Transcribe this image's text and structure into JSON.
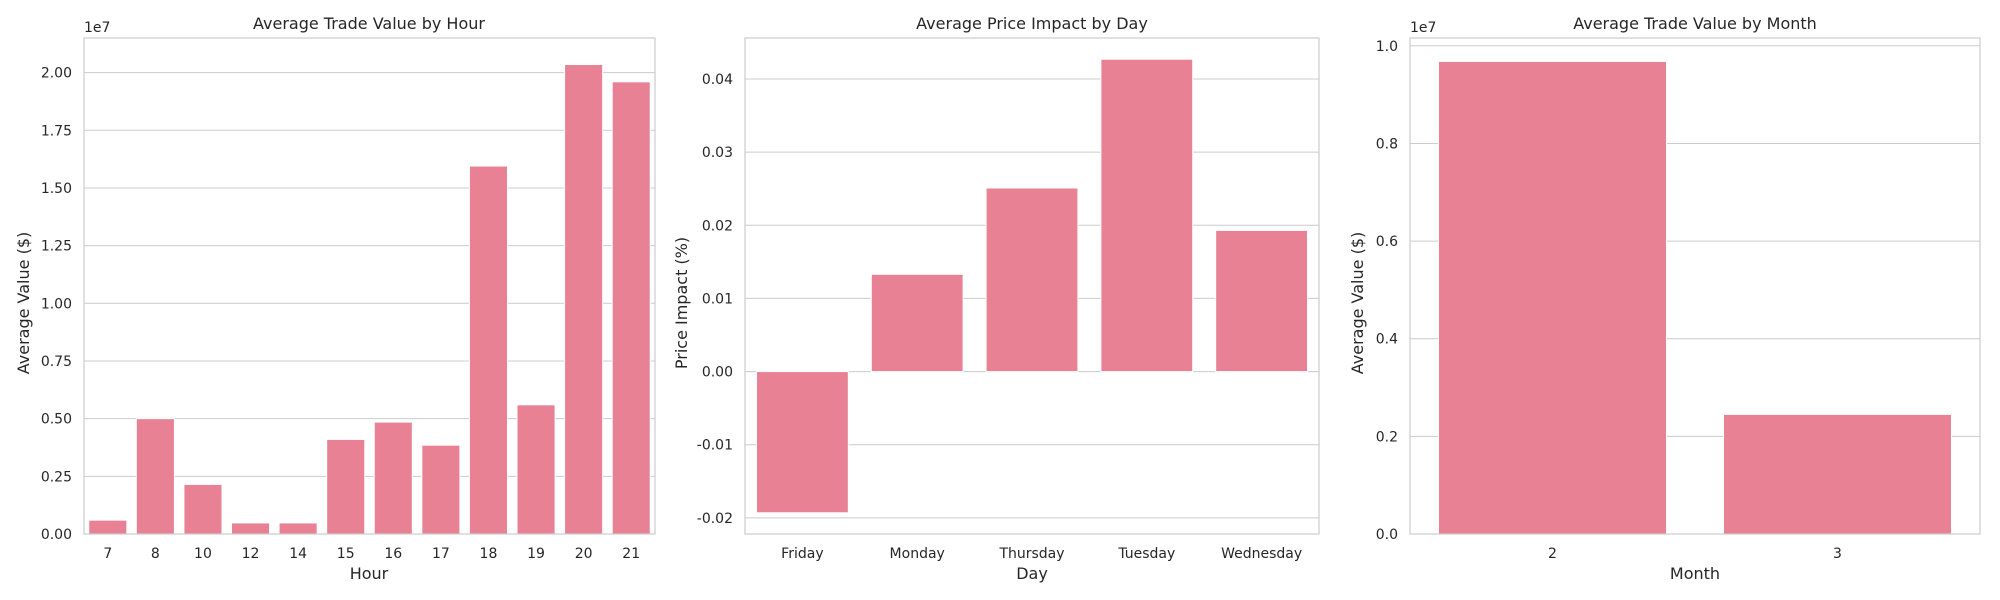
{
  "chart_data": [
    {
      "type": "bar",
      "title": "Average Trade Value by Hour",
      "xlabel": "Hour",
      "ylabel": "Average Value ($)",
      "offset_label": "1e7",
      "categories": [
        "7",
        "8",
        "10",
        "12",
        "14",
        "15",
        "16",
        "17",
        "18",
        "19",
        "20",
        "21"
      ],
      "values": [
        600000,
        5000000,
        2150000,
        480000,
        480000,
        4100000,
        4850000,
        3850000,
        15950000,
        5600000,
        20350000,
        19600000
      ],
      "ylim": [
        0,
        21500000
      ],
      "yticks": [
        0,
        2500000,
        5000000,
        7500000,
        10000000,
        12500000,
        15000000,
        17500000,
        20000000
      ],
      "ytick_labels": [
        "0.00",
        "0.25",
        "0.50",
        "0.75",
        "1.00",
        "1.25",
        "1.50",
        "1.75",
        "2.00"
      ],
      "grid": true,
      "color": "#e98195"
    },
    {
      "type": "bar",
      "title": "Average Price Impact by Day",
      "xlabel": "Day",
      "ylabel": "Price Impact (%)",
      "categories": [
        "Friday",
        "Monday",
        "Thursday",
        "Tuesday",
        "Wednesday"
      ],
      "values": [
        -0.0193,
        0.0133,
        0.0251,
        0.0427,
        0.0193
      ],
      "ylim": [
        -0.0222,
        0.0456
      ],
      "yticks": [
        -0.02,
        -0.01,
        0.0,
        0.01,
        0.02,
        0.03,
        0.04
      ],
      "ytick_labels": [
        "-0.02",
        "-0.01",
        "0.00",
        "0.01",
        "0.02",
        "0.03",
        "0.04"
      ],
      "grid": true,
      "color": "#e98195"
    },
    {
      "type": "bar",
      "title": "Average Trade Value by Month",
      "xlabel": "Month",
      "ylabel": "Average Value ($)",
      "offset_label": "1e7",
      "categories": [
        "2",
        "3"
      ],
      "values": [
        9680000,
        2450000
      ],
      "ylim": [
        0,
        10160000
      ],
      "yticks": [
        0,
        2000000,
        4000000,
        6000000,
        8000000,
        10000000
      ],
      "ytick_labels": [
        "0.0",
        "0.2",
        "0.4",
        "0.6",
        "0.8",
        "1.0"
      ],
      "grid": true,
      "color": "#e98195"
    }
  ]
}
